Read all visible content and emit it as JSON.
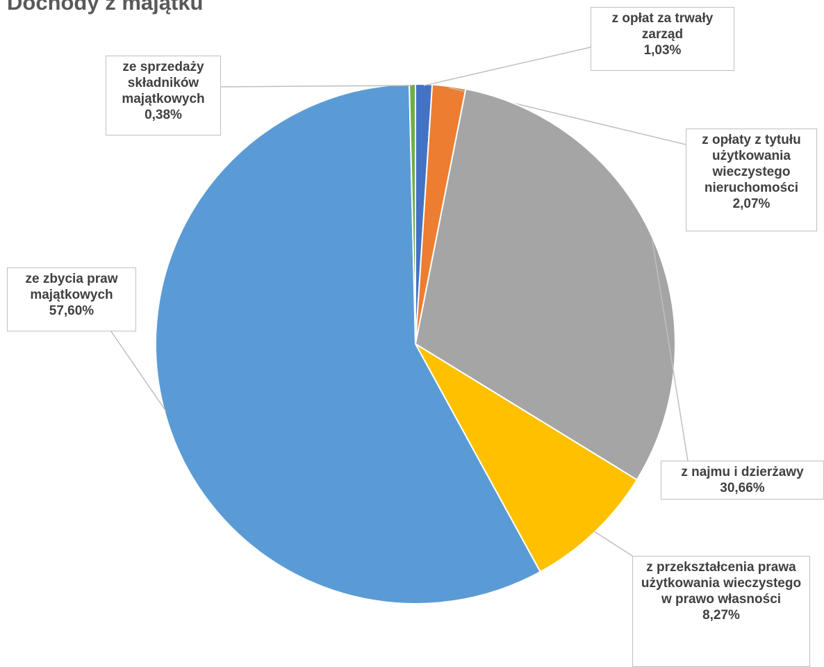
{
  "chart_data": {
    "type": "pie",
    "title": "Dochody z majątku",
    "categories": [
      "z opłat za trwały zarząd",
      "z opłaty z tytułu użytkowania wieczystego nieruchomości",
      "z najmu i dzierżawy",
      "z przekształcenia prawa użytkowania wieczystego w prawo własności",
      "ze zbycia praw majątkowych",
      "ze sprzedaży składników majątkowych"
    ],
    "values": [
      1.03,
      2.07,
      30.66,
      8.27,
      57.6,
      0.38
    ],
    "value_labels": [
      "1,03%",
      "2,07%",
      "30,66%",
      "8,27%",
      "57,60%",
      "0,38%"
    ],
    "colors": [
      "#4472c4",
      "#ed7d31",
      "#a5a5a5",
      "#ffc000",
      "#5b9bd5",
      "#70ad47"
    ]
  }
}
